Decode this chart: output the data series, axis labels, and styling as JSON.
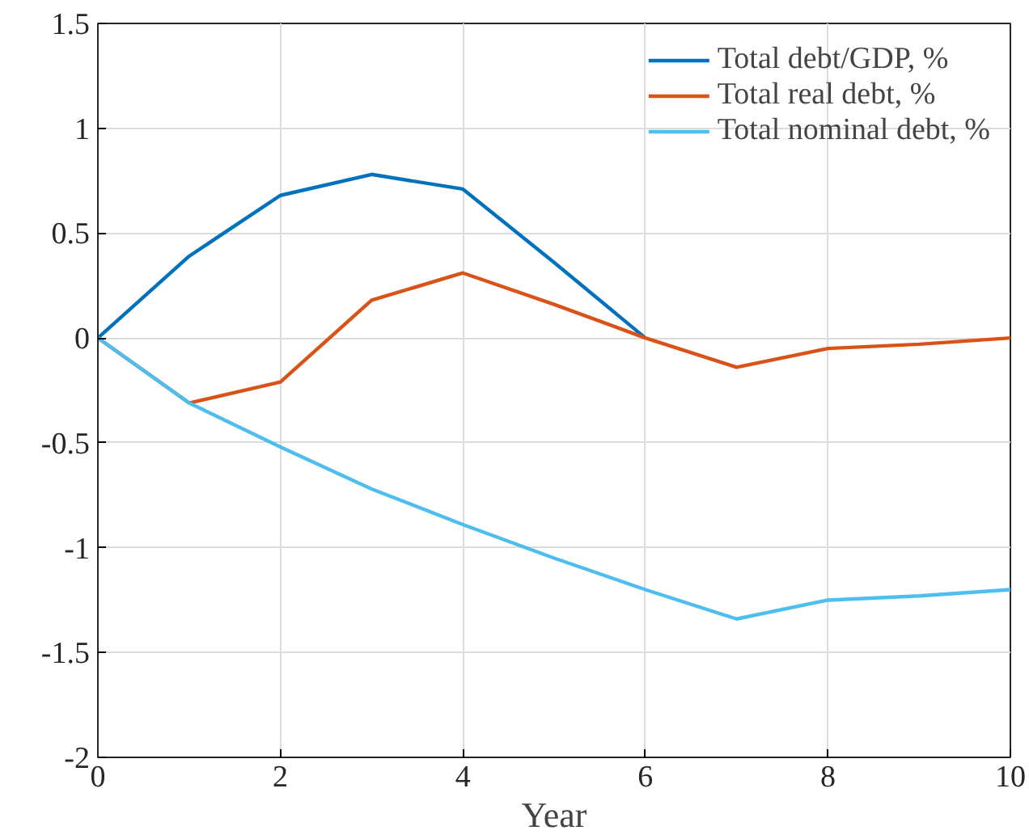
{
  "chart_data": {
    "type": "line",
    "xlabel": "Year",
    "x": [
      0,
      1,
      2,
      3,
      4,
      5,
      6,
      7,
      8,
      9,
      10
    ],
    "series": [
      {
        "name": "Total debt/GDP, %",
        "color": "#0072bd",
        "values": [
          0,
          0.39,
          0.68,
          0.78,
          0.71,
          0.36,
          0,
          null,
          null,
          null,
          null
        ]
      },
      {
        "name": "Total real debt, %",
        "color": "#d95319",
        "values": [
          0,
          -0.31,
          -0.21,
          0.18,
          0.31,
          0.16,
          0,
          -0.14,
          -0.05,
          -0.03,
          0
        ]
      },
      {
        "name": "Total nominal debt, %",
        "color": "#4dbeee",
        "values": [
          0,
          -0.31,
          -0.52,
          -0.72,
          -0.89,
          -1.05,
          -1.2,
          -1.34,
          -1.25,
          -1.23,
          -1.2
        ]
      }
    ],
    "xlim": [
      0,
      10
    ],
    "xticks": [
      0,
      2,
      4,
      6,
      8,
      10
    ],
    "ylim": [
      -2,
      1.5
    ],
    "yticks": [
      -2,
      -1.5,
      -1,
      -0.5,
      0,
      0.5,
      1,
      1.5
    ],
    "grid": true,
    "legend": "top right",
    "marker": "none",
    "line_style": "solid"
  }
}
